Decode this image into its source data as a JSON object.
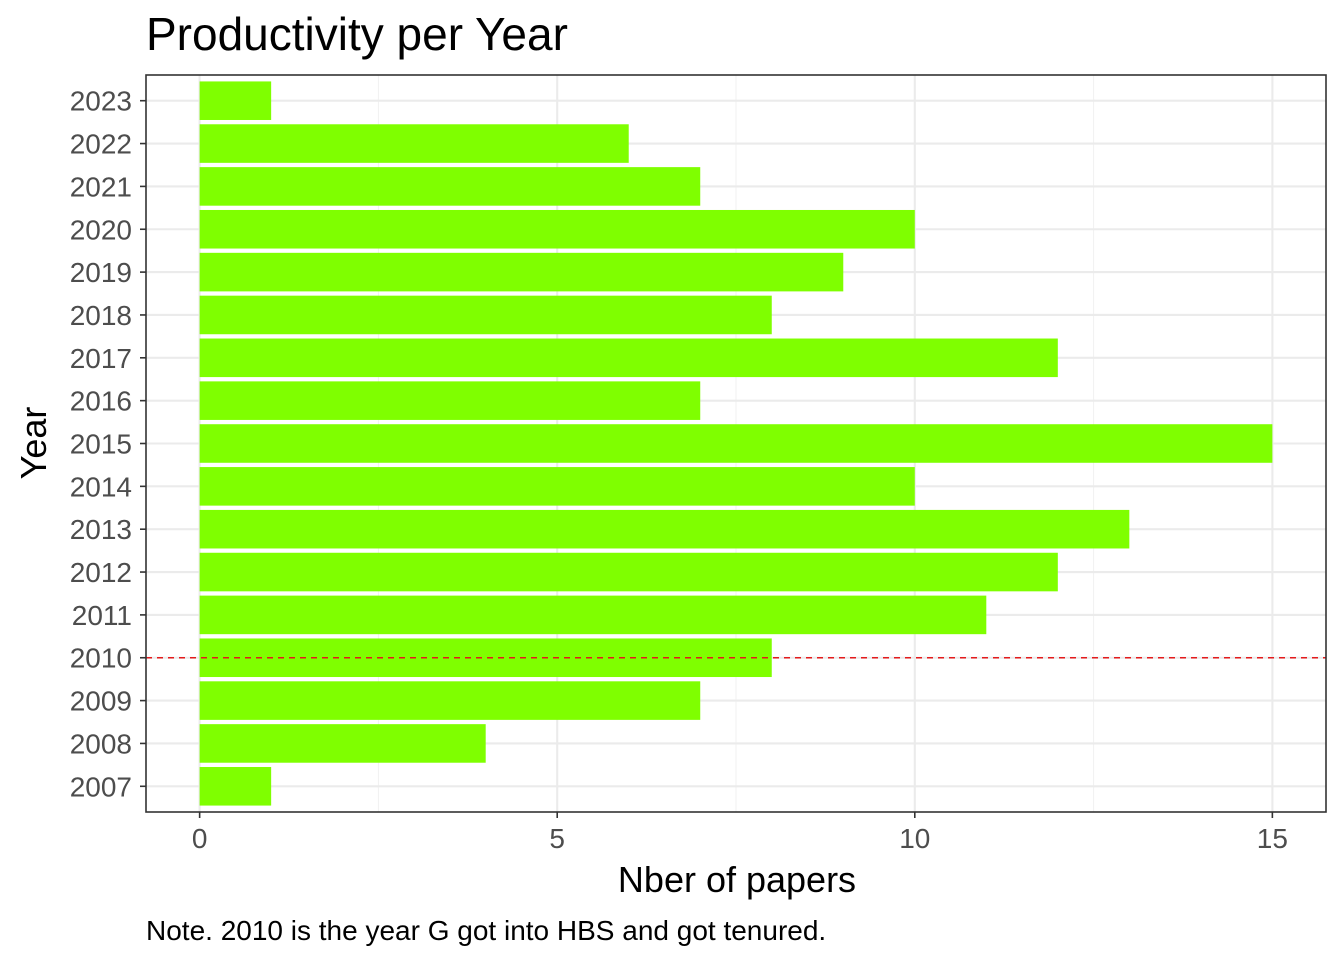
{
  "chart_data": {
    "type": "bar",
    "orientation": "horizontal",
    "title": "Productivity per Year",
    "xlabel": "Nber of papers",
    "ylabel": "Year",
    "categories": [
      "2007",
      "2008",
      "2009",
      "2010",
      "2011",
      "2012",
      "2013",
      "2014",
      "2015",
      "2016",
      "2017",
      "2018",
      "2019",
      "2020",
      "2021",
      "2022",
      "2023"
    ],
    "values": [
      1,
      4,
      7,
      8,
      11,
      12,
      13,
      10,
      15,
      7,
      12,
      8,
      9,
      10,
      7,
      6,
      1
    ],
    "xlim": [
      -0.75,
      15.75
    ],
    "xticks": [
      0,
      5,
      10,
      15
    ],
    "xtick_labels": [
      "0",
      "5",
      "10",
      "15"
    ],
    "bar_color": "#7FFF00",
    "reference_line": {
      "category": "2010",
      "style": "dashed",
      "color": "#E41A1C"
    },
    "grid": true,
    "caption": "Note. 2010 is the year G got into HBS and got tenured."
  }
}
